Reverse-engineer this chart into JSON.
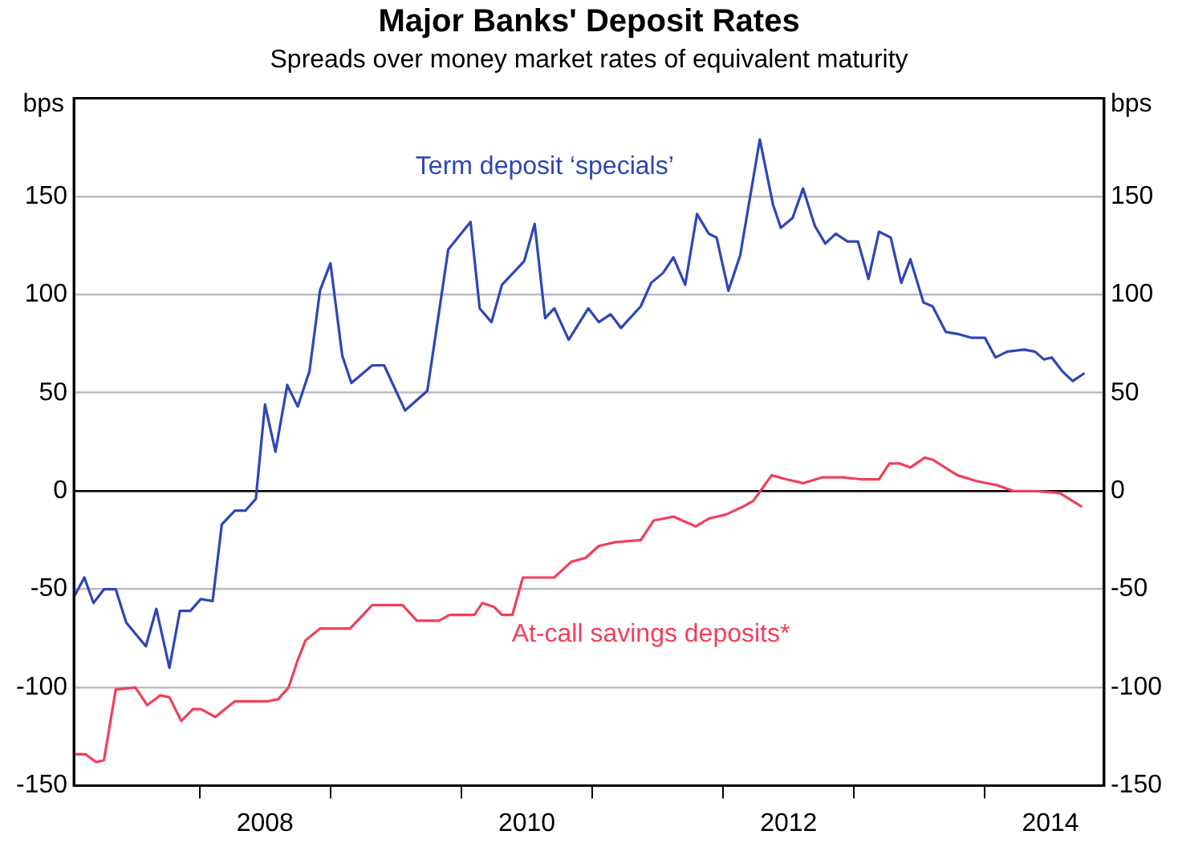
{
  "chart_data": {
    "type": "line",
    "title": "Major Banks' Deposit Rates",
    "subtitle": "Spreads over money market rates of equivalent maturity",
    "ylabel": "bps",
    "y2label": "bps",
    "xlim": [
      2007.04,
      2014.91
    ],
    "xticks": [
      {
        "value": 2008,
        "label": null
      },
      {
        "value": 2008.5,
        "label": "2008"
      },
      {
        "value": 2009,
        "label": null
      },
      {
        "value": 2010,
        "label": null
      },
      {
        "value": 2010.5,
        "label": "2010"
      },
      {
        "value": 2011,
        "label": null
      },
      {
        "value": 2012,
        "label": null
      },
      {
        "value": 2012.5,
        "label": "2012"
      },
      {
        "value": 2013,
        "label": null
      },
      {
        "value": 2014,
        "label": null
      },
      {
        "value": 2014.5,
        "label": "2014"
      }
    ],
    "ylim": [
      -150,
      200
    ],
    "yticks": [
      -150,
      -100,
      -50,
      0,
      50,
      100,
      150
    ],
    "y2lim": [
      -150,
      200
    ],
    "y2ticks": [
      -150,
      -100,
      -50,
      0,
      50,
      100,
      150
    ],
    "grid": "y",
    "legend": false,
    "marker": "none",
    "line_style": "solid",
    "ref_lines": [
      {
        "axis": "y",
        "value": 0,
        "color": "#000000"
      }
    ],
    "series": [
      {
        "name": "Term deposit ‘specials’",
        "color": "#2e46b8",
        "x": [
          2007.04,
          2007.12,
          2007.19,
          2007.27,
          2007.36,
          2007.44,
          2007.59,
          2007.67,
          2007.77,
          2007.85,
          2007.93,
          2008.01,
          2008.1,
          2008.17,
          2008.27,
          2008.35,
          2008.43,
          2008.5,
          2008.58,
          2008.67,
          2008.75,
          2008.84,
          2008.92,
          2009.0,
          2009.09,
          2009.16,
          2009.32,
          2009.41,
          2009.57,
          2009.74,
          2009.9,
          2010.07,
          2010.14,
          2010.23,
          2010.31,
          2010.48,
          2010.56,
          2010.64,
          2010.71,
          2010.82,
          2010.97,
          2011.05,
          2011.14,
          2011.22,
          2011.37,
          2011.45,
          2011.54,
          2011.62,
          2011.71,
          2011.8,
          2011.89,
          2011.95,
          2012.04,
          2012.13,
          2012.28,
          2012.38,
          2012.44,
          2012.53,
          2012.61,
          2012.7,
          2012.78,
          2012.86,
          2012.95,
          2013.03,
          2013.11,
          2013.19,
          2013.28,
          2013.36,
          2013.43,
          2013.53,
          2013.6,
          2013.7,
          2013.79,
          2013.9,
          2014.0,
          2014.08,
          2014.17,
          2014.3,
          2014.38,
          2014.45,
          2014.51,
          2014.59,
          2014.67,
          2014.76
        ],
        "values": [
          -54,
          -44,
          -57,
          -50,
          -50,
          -67,
          -79,
          -60,
          -90,
          -61,
          -61,
          -55,
          -56,
          -17,
          -10,
          -10,
          -4,
          44,
          20,
          54,
          43,
          61,
          102,
          116,
          69,
          55,
          64,
          64,
          41,
          51,
          123,
          137,
          93,
          86,
          105,
          117,
          136,
          88,
          93,
          77,
          93,
          86,
          90,
          83,
          94,
          106,
          111,
          119,
          105,
          141,
          131,
          129,
          102,
          120,
          179,
          146,
          134,
          139,
          154,
          135,
          126,
          131,
          127,
          127,
          108,
          132,
          129,
          106,
          118,
          96,
          94,
          81,
          80,
          78,
          78,
          68,
          71,
          72,
          71,
          67,
          68,
          61,
          56,
          60
        ]
      },
      {
        "name": "At-call savings deposits*",
        "color": "#f0405a",
        "x": [
          2007.04,
          2007.13,
          2007.21,
          2007.27,
          2007.36,
          2007.51,
          2007.6,
          2007.7,
          2007.77,
          2007.86,
          2007.95,
          2008.01,
          2008.12,
          2008.27,
          2008.39,
          2008.52,
          2008.6,
          2008.68,
          2008.75,
          2008.81,
          2008.92,
          2009.15,
          2009.32,
          2009.55,
          2009.66,
          2009.83,
          2009.91,
          2010.1,
          2010.16,
          2010.25,
          2010.31,
          2010.39,
          2010.47,
          2010.71,
          2010.84,
          2010.95,
          2011.05,
          2011.18,
          2011.37,
          2011.47,
          2011.62,
          2011.79,
          2011.89,
          2012.02,
          2012.15,
          2012.23,
          2012.37,
          2012.48,
          2012.61,
          2012.76,
          2012.91,
          2013.05,
          2013.19,
          2013.27,
          2013.35,
          2013.43,
          2013.54,
          2013.6,
          2013.79,
          2013.94,
          2014.09,
          2014.22,
          2014.38,
          2014.57,
          2014.74
        ],
        "values": [
          -134,
          -134,
          -138,
          -137,
          -101,
          -100,
          -109,
          -104,
          -105,
          -117,
          -111,
          -111,
          -115,
          -107,
          -107,
          -107,
          -106,
          -100,
          -86,
          -76,
          -70,
          -70,
          -58,
          -58,
          -66,
          -66,
          -63,
          -63,
          -57,
          -59,
          -63,
          -63,
          -44,
          -44,
          -36,
          -34,
          -28,
          -26,
          -25,
          -15,
          -13,
          -18,
          -14,
          -12,
          -8,
          -5,
          8,
          6,
          4,
          7,
          7,
          6,
          6,
          14,
          14,
          12,
          17,
          16,
          8,
          5,
          3,
          0,
          0,
          -1,
          -8
        ]
      }
    ]
  }
}
